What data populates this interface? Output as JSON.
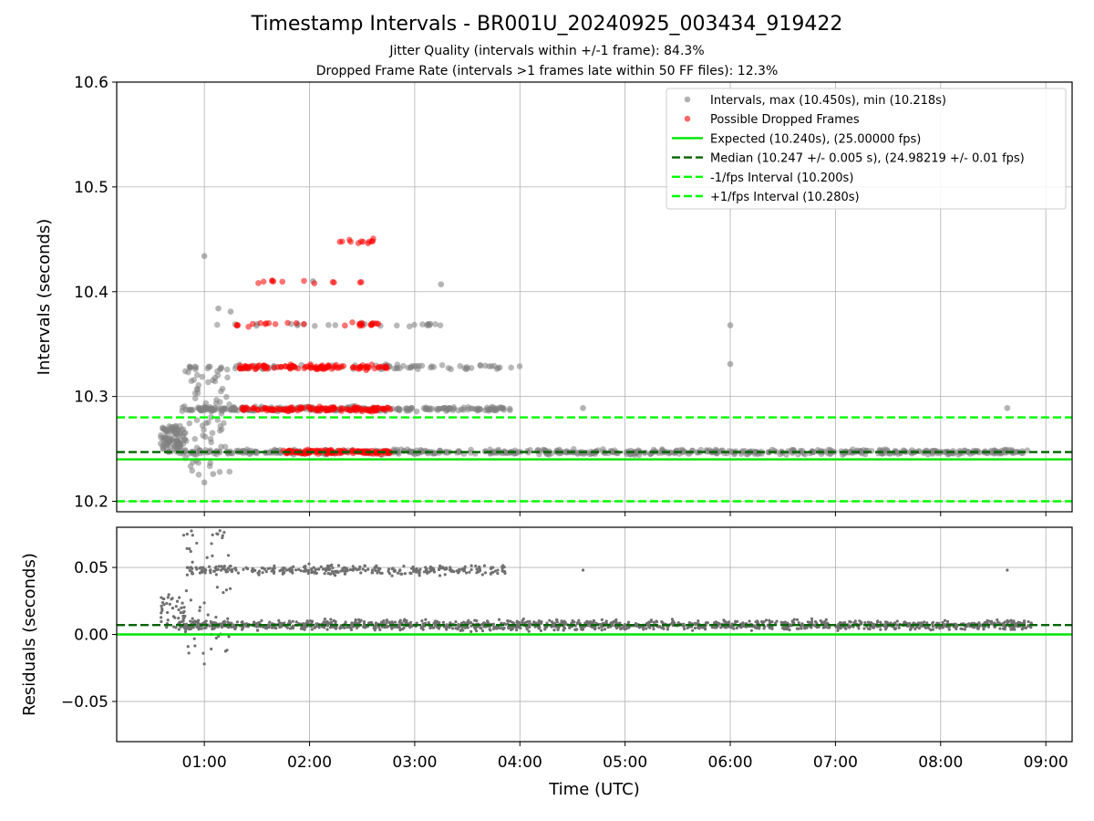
{
  "title": "Timestamp Intervals - BR001U_20240925_003434_919422",
  "subtitle1": "Jitter Quality (intervals within +/-1 frame): 84.3%",
  "subtitle2": "Dropped Frame Rate (intervals >1 frames late within 50 FF files): 12.3%",
  "colors": {
    "intervals": "#808080",
    "dropped": "#ff0000",
    "expected": "#00e600",
    "median": "#006400",
    "fps": "#00ff00"
  },
  "chart_data": [
    {
      "type": "scatter",
      "ylabel": "Intervals (seconds)",
      "xlim": [
        "00:10",
        "09:15"
      ],
      "ylim": [
        10.19,
        10.6
      ],
      "yticks": [
        "10.2",
        "10.3",
        "10.4",
        "10.5",
        "10.6"
      ],
      "grid": true,
      "legend_position": "top-right",
      "legend": [
        {
          "label": "Intervals, max (10.450s), min (10.218s)",
          "kind": "marker",
          "color": "#808080"
        },
        {
          "label": "Possible Dropped Frames",
          "kind": "marker",
          "color": "#ff0000"
        },
        {
          "label": "Expected (10.240s), (25.00000 fps)",
          "kind": "solid",
          "color": "#00e600"
        },
        {
          "label": "Median (10.247 +/- 0.005 s), (24.98219 +/- 0.01 fps)",
          "kind": "dashed",
          "color": "#006400"
        },
        {
          "label": "-1/fps Interval (10.200s)",
          "kind": "dashed",
          "color": "#00ff00"
        },
        {
          "label": "+1/fps Interval (10.280s)",
          "kind": "dashed",
          "color": "#00ff00"
        }
      ],
      "hlines": {
        "expected": 10.24,
        "median": 10.247,
        "minus_fps": 10.2,
        "plus_fps": 10.28
      },
      "bands_intervals": [
        {
          "value": 10.247,
          "from": "00:45",
          "to": "08:52"
        },
        {
          "value": 10.288,
          "from": "00:47",
          "to": "03:55"
        },
        {
          "value": 10.328,
          "from": "00:50",
          "to": "04:00"
        },
        {
          "value": 10.369,
          "from": "01:05",
          "to": "03:15"
        }
      ],
      "dropped_bands": [
        {
          "value": 10.247,
          "from": "01:45",
          "to": "02:48"
        },
        {
          "value": 10.288,
          "from": "01:20",
          "to": "02:48"
        },
        {
          "value": 10.328,
          "from": "01:20",
          "to": "02:45"
        },
        {
          "value": 10.369,
          "from": "01:18",
          "to": "02:45"
        },
        {
          "value": 10.409,
          "from": "01:23",
          "to": "02:35"
        },
        {
          "value": 10.448,
          "from": "02:10",
          "to": "02:37"
        }
      ],
      "outliers": [
        {
          "x": "01:00",
          "y": 10.434
        },
        {
          "x": "01:08",
          "y": 10.384
        },
        {
          "x": "01:15",
          "y": 10.381
        },
        {
          "x": "02:02",
          "y": 10.41
        },
        {
          "x": "03:15",
          "y": 10.407
        },
        {
          "x": "06:00",
          "y": 10.368
        },
        {
          "x": "06:00",
          "y": 10.331
        },
        {
          "x": "04:36",
          "y": 10.289
        },
        {
          "x": "08:38",
          "y": 10.289
        },
        {
          "x": "01:00",
          "y": 10.218
        },
        {
          "x": "01:05",
          "y": 10.226
        },
        {
          "x": "03:07",
          "y": 10.368
        }
      ]
    },
    {
      "type": "scatter",
      "ylabel": "Residuals (seconds)",
      "xlabel": "Time (UTC)",
      "xlim": [
        "00:10",
        "09:15"
      ],
      "ylim": [
        -0.08,
        0.08
      ],
      "yticks": [
        "−0.05",
        "0.00",
        "0.05"
      ],
      "xticks": [
        "01:00",
        "02:00",
        "03:00",
        "04:00",
        "05:00",
        "06:00",
        "07:00",
        "08:00",
        "09:00"
      ],
      "grid": true,
      "hlines": {
        "expected": 0.0,
        "median": 0.007
      },
      "bands": [
        {
          "value": 0.007,
          "from": "00:45",
          "to": "08:52"
        },
        {
          "value": 0.048,
          "from": "00:50",
          "to": "03:52"
        }
      ],
      "outliers": [
        {
          "x": "04:36",
          "y": 0.048
        },
        {
          "x": "08:38",
          "y": 0.048
        },
        {
          "x": "01:00",
          "y": -0.022
        }
      ]
    }
  ]
}
